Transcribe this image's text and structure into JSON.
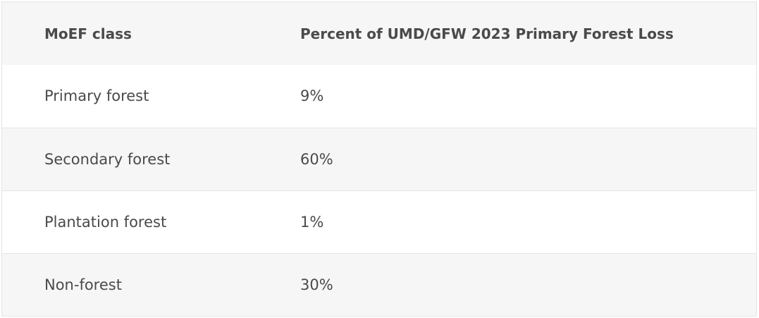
{
  "table": {
    "headers": [
      "MoEF class",
      "Percent of UMD/GFW 2023 Primary Forest Loss"
    ],
    "rows": [
      [
        "Primary forest",
        "9%"
      ],
      [
        "Secondary forest",
        "60%"
      ],
      [
        "Plantation forest",
        "1%"
      ],
      [
        "Non-forest",
        "30%"
      ]
    ]
  }
}
